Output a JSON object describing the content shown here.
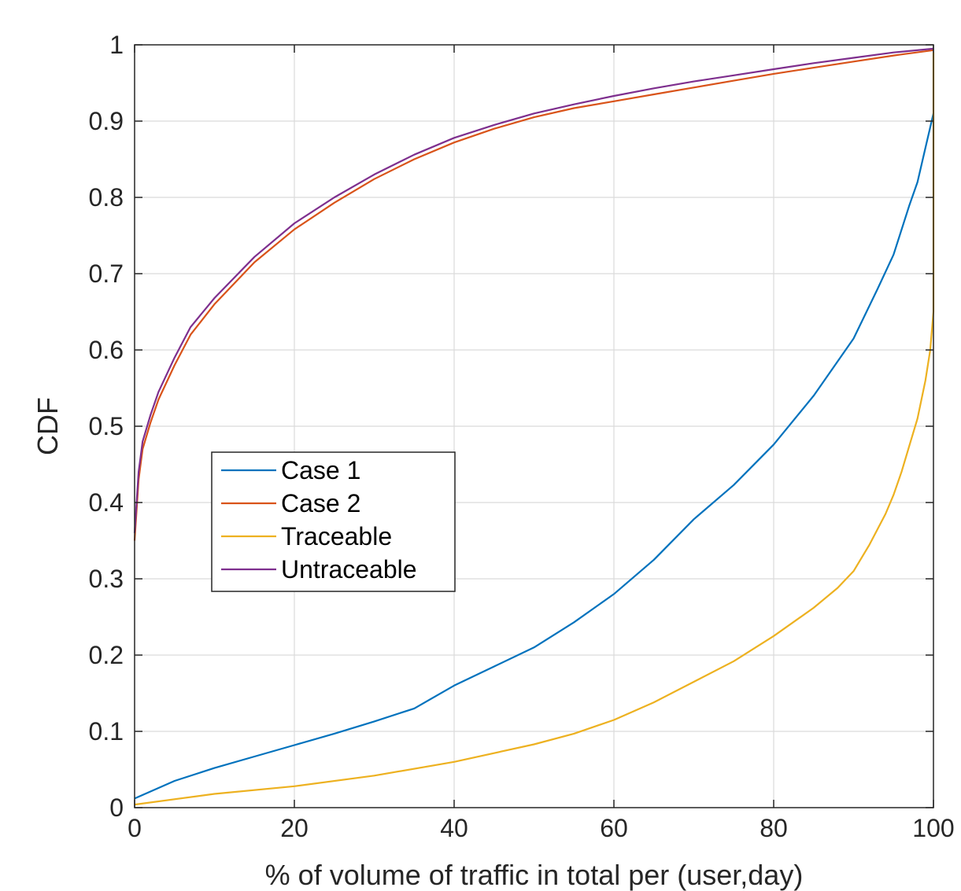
{
  "chart_data": {
    "type": "line",
    "title": "",
    "xlabel": "% of volume of traffic in total per (user,day)",
    "ylabel": "CDF",
    "xlim": [
      0,
      100
    ],
    "ylim": [
      0,
      1
    ],
    "xticks": [
      0,
      20,
      40,
      60,
      80,
      100
    ],
    "yticks": [
      0,
      0.1,
      0.2,
      0.3,
      0.4,
      0.5,
      0.6,
      0.7,
      0.8,
      0.9,
      1
    ],
    "xtick_labels": [
      "0",
      "20",
      "40",
      "60",
      "80",
      "100"
    ],
    "ytick_labels": [
      "0",
      "0.1",
      "0.2",
      "0.3",
      "0.4",
      "0.5",
      "0.6",
      "0.7",
      "0.8",
      "0.9",
      "1"
    ],
    "grid": true,
    "legend_position": "middle-left",
    "series": [
      {
        "name": "Case 1",
        "color": "#0072bd",
        "points": [
          [
            0,
            0.012
          ],
          [
            5,
            0.035
          ],
          [
            10,
            0.052
          ],
          [
            15,
            0.067
          ],
          [
            20,
            0.082
          ],
          [
            25,
            0.097
          ],
          [
            30,
            0.113
          ],
          [
            35,
            0.13
          ],
          [
            40,
            0.16
          ],
          [
            45,
            0.185
          ],
          [
            50,
            0.21
          ],
          [
            55,
            0.243
          ],
          [
            60,
            0.28
          ],
          [
            65,
            0.325
          ],
          [
            70,
            0.378
          ],
          [
            75,
            0.423
          ],
          [
            80,
            0.476
          ],
          [
            85,
            0.54
          ],
          [
            90,
            0.615
          ],
          [
            93,
            0.68
          ],
          [
            95,
            0.725
          ],
          [
            97,
            0.79
          ],
          [
            98,
            0.82
          ],
          [
            99,
            0.865
          ],
          [
            100,
            0.91
          ]
        ]
      },
      {
        "name": "Case 2",
        "color": "#d95319",
        "points": [
          [
            0,
            0.35
          ],
          [
            0.5,
            0.43
          ],
          [
            1,
            0.47
          ],
          [
            2,
            0.505
          ],
          [
            3,
            0.535
          ],
          [
            5,
            0.58
          ],
          [
            7,
            0.62
          ],
          [
            10,
            0.66
          ],
          [
            15,
            0.715
          ],
          [
            20,
            0.758
          ],
          [
            25,
            0.793
          ],
          [
            30,
            0.824
          ],
          [
            35,
            0.85
          ],
          [
            40,
            0.872
          ],
          [
            45,
            0.89
          ],
          [
            50,
            0.905
          ],
          [
            55,
            0.917
          ],
          [
            60,
            0.926
          ],
          [
            65,
            0.935
          ],
          [
            70,
            0.944
          ],
          [
            75,
            0.953
          ],
          [
            80,
            0.962
          ],
          [
            85,
            0.97
          ],
          [
            90,
            0.978
          ],
          [
            95,
            0.986
          ],
          [
            100,
            0.993
          ]
        ]
      },
      {
        "name": "Traceable",
        "color": "#edb120",
        "points": [
          [
            0,
            0.004
          ],
          [
            10,
            0.018
          ],
          [
            20,
            0.028
          ],
          [
            30,
            0.042
          ],
          [
            40,
            0.06
          ],
          [
            50,
            0.083
          ],
          [
            55,
            0.097
          ],
          [
            60,
            0.115
          ],
          [
            65,
            0.138
          ],
          [
            70,
            0.165
          ],
          [
            75,
            0.192
          ],
          [
            80,
            0.225
          ],
          [
            85,
            0.262
          ],
          [
            88,
            0.288
          ],
          [
            90,
            0.31
          ],
          [
            92,
            0.345
          ],
          [
            94,
            0.385
          ],
          [
            95,
            0.41
          ],
          [
            96,
            0.44
          ],
          [
            97,
            0.475
          ],
          [
            98,
            0.51
          ],
          [
            99,
            0.56
          ],
          [
            99.6,
            0.6
          ],
          [
            100,
            0.65
          ],
          [
            100,
            0.99
          ]
        ]
      },
      {
        "name": "Untraceable",
        "color": "#7e2f8e",
        "points": [
          [
            0,
            0.36
          ],
          [
            0.5,
            0.44
          ],
          [
            1,
            0.48
          ],
          [
            2,
            0.515
          ],
          [
            3,
            0.545
          ],
          [
            5,
            0.59
          ],
          [
            7,
            0.63
          ],
          [
            10,
            0.668
          ],
          [
            15,
            0.722
          ],
          [
            20,
            0.766
          ],
          [
            25,
            0.8
          ],
          [
            30,
            0.83
          ],
          [
            35,
            0.856
          ],
          [
            40,
            0.878
          ],
          [
            45,
            0.895
          ],
          [
            50,
            0.91
          ],
          [
            55,
            0.922
          ],
          [
            60,
            0.933
          ],
          [
            65,
            0.943
          ],
          [
            70,
            0.952
          ],
          [
            75,
            0.96
          ],
          [
            80,
            0.968
          ],
          [
            85,
            0.976
          ],
          [
            90,
            0.983
          ],
          [
            95,
            0.99
          ],
          [
            100,
            0.995
          ]
        ]
      }
    ]
  }
}
